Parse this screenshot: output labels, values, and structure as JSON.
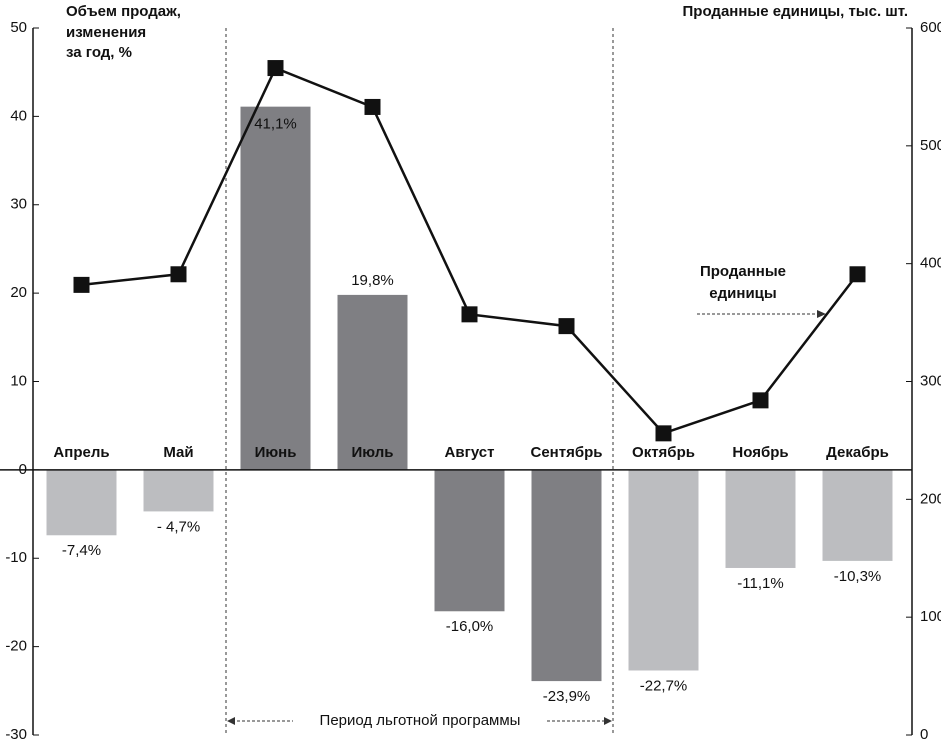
{
  "chart_data": {
    "type": "bar-line",
    "y_label": [
      "Объем продаж,",
      "изменения",
      "за год, %"
    ],
    "y2_label": "Проданные единицы, тыс. шт.",
    "categories": [
      "Апрель",
      "Май",
      "Июнь",
      "Июль",
      "Август",
      "Сентябрь",
      "Октябрь",
      "Ноябрь",
      "Декабрь"
    ],
    "series": [
      {
        "type": "bar",
        "values": [
          -7.4,
          -4.7,
          41.1,
          19.8,
          -16.0,
          -23.9,
          -22.7,
          -11.1,
          -10.3
        ],
        "value_labels": [
          "-7,4%",
          "- 4,7%",
          "41,1%",
          "19,8%",
          "-16,0%",
          "-23,9%",
          "-22,7%",
          "-11,1%",
          "-10,3%"
        ],
        "colors": [
          "#bcbdc0",
          "#bcbdc0",
          "#7f7f83",
          "#7f7f83",
          "#7f7f83",
          "#7f7f83",
          "#bcbdc0",
          "#bcbdc0",
          "#bcbdc0"
        ]
      },
      {
        "type": "line",
        "axis": "y2",
        "color": "#111111",
        "values": [
          382,
          391,
          566,
          533,
          357,
          347,
          256,
          284,
          391
        ]
      }
    ],
    "ylim": [
      -30,
      50
    ],
    "yticks": [
      -30,
      -20,
      -10,
      0,
      10,
      20,
      30,
      40,
      50
    ],
    "y2lim": [
      0,
      600
    ],
    "y2ticks": [
      0,
      100,
      200,
      300,
      400,
      500,
      600
    ],
    "annotations": {
      "line_label": [
        "Проданные",
        "единицы"
      ],
      "period": "Период льготной программы"
    }
  }
}
